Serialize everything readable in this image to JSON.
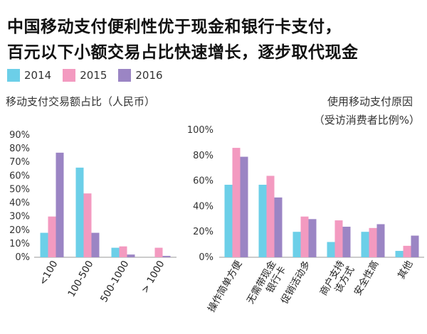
{
  "title_line1": "中国移动支付便利性优于现金和银行卡支付，",
  "title_line2": "百元以下小额交易占比快速增长，逐步取代现金",
  "colors": {
    "2014": "#6CCFE8",
    "2015": "#F39AC0",
    "2016": "#9B85C4",
    "axis": "#999999"
  },
  "legend": [
    {
      "label": "2014",
      "color": "#6CCFE8"
    },
    {
      "label": "2015",
      "color": "#F39AC0"
    },
    {
      "label": "2016",
      "color": "#9B85C4"
    }
  ],
  "chart_data": [
    {
      "type": "bar",
      "title": "移动支付交易额占比（人民币）",
      "categories": [
        "<100",
        "100-500",
        "500-1000",
        "> 1000"
      ],
      "series": [
        {
          "name": "2014",
          "values": [
            18,
            66,
            7,
            0
          ]
        },
        {
          "name": "2015",
          "values": [
            30,
            47,
            8,
            7
          ]
        },
        {
          "name": "2016",
          "values": [
            77,
            18,
            2,
            1
          ]
        }
      ],
      "ylim": [
        0,
        90
      ],
      "yticks": [
        "0%",
        "10%",
        "20%",
        "30%",
        "40%",
        "50%",
        "60%",
        "70%",
        "80%",
        "90%"
      ],
      "category_label_rotation": "rotated"
    },
    {
      "type": "bar",
      "title": "使用移动支付原因",
      "subtitle": "（受访消费者比例%）",
      "categories": [
        "操作简单方便",
        "无需带现金银行卡",
        "促销活动多",
        "商户支持该方式",
        "安全性高",
        "其他"
      ],
      "category_lines": [
        [
          "操作简单方便"
        ],
        [
          "无需带现金",
          "银行卡"
        ],
        [
          "促销活动多"
        ],
        [
          "商户支持",
          "该方式"
        ],
        [
          "安全性高"
        ],
        [
          "其他"
        ]
      ],
      "series": [
        {
          "name": "2014",
          "values": [
            57,
            57,
            20,
            12,
            20,
            5
          ]
        },
        {
          "name": "2015",
          "values": [
            86,
            64,
            32,
            29,
            23,
            9
          ]
        },
        {
          "name": "2016",
          "values": [
            79,
            47,
            30,
            24,
            26,
            17
          ]
        }
      ],
      "ylim": [
        0,
        100
      ],
      "yticks": [
        "0%",
        "20%",
        "40%",
        "60%",
        "80%",
        "100%"
      ],
      "category_label_rotation": "rotated"
    }
  ]
}
